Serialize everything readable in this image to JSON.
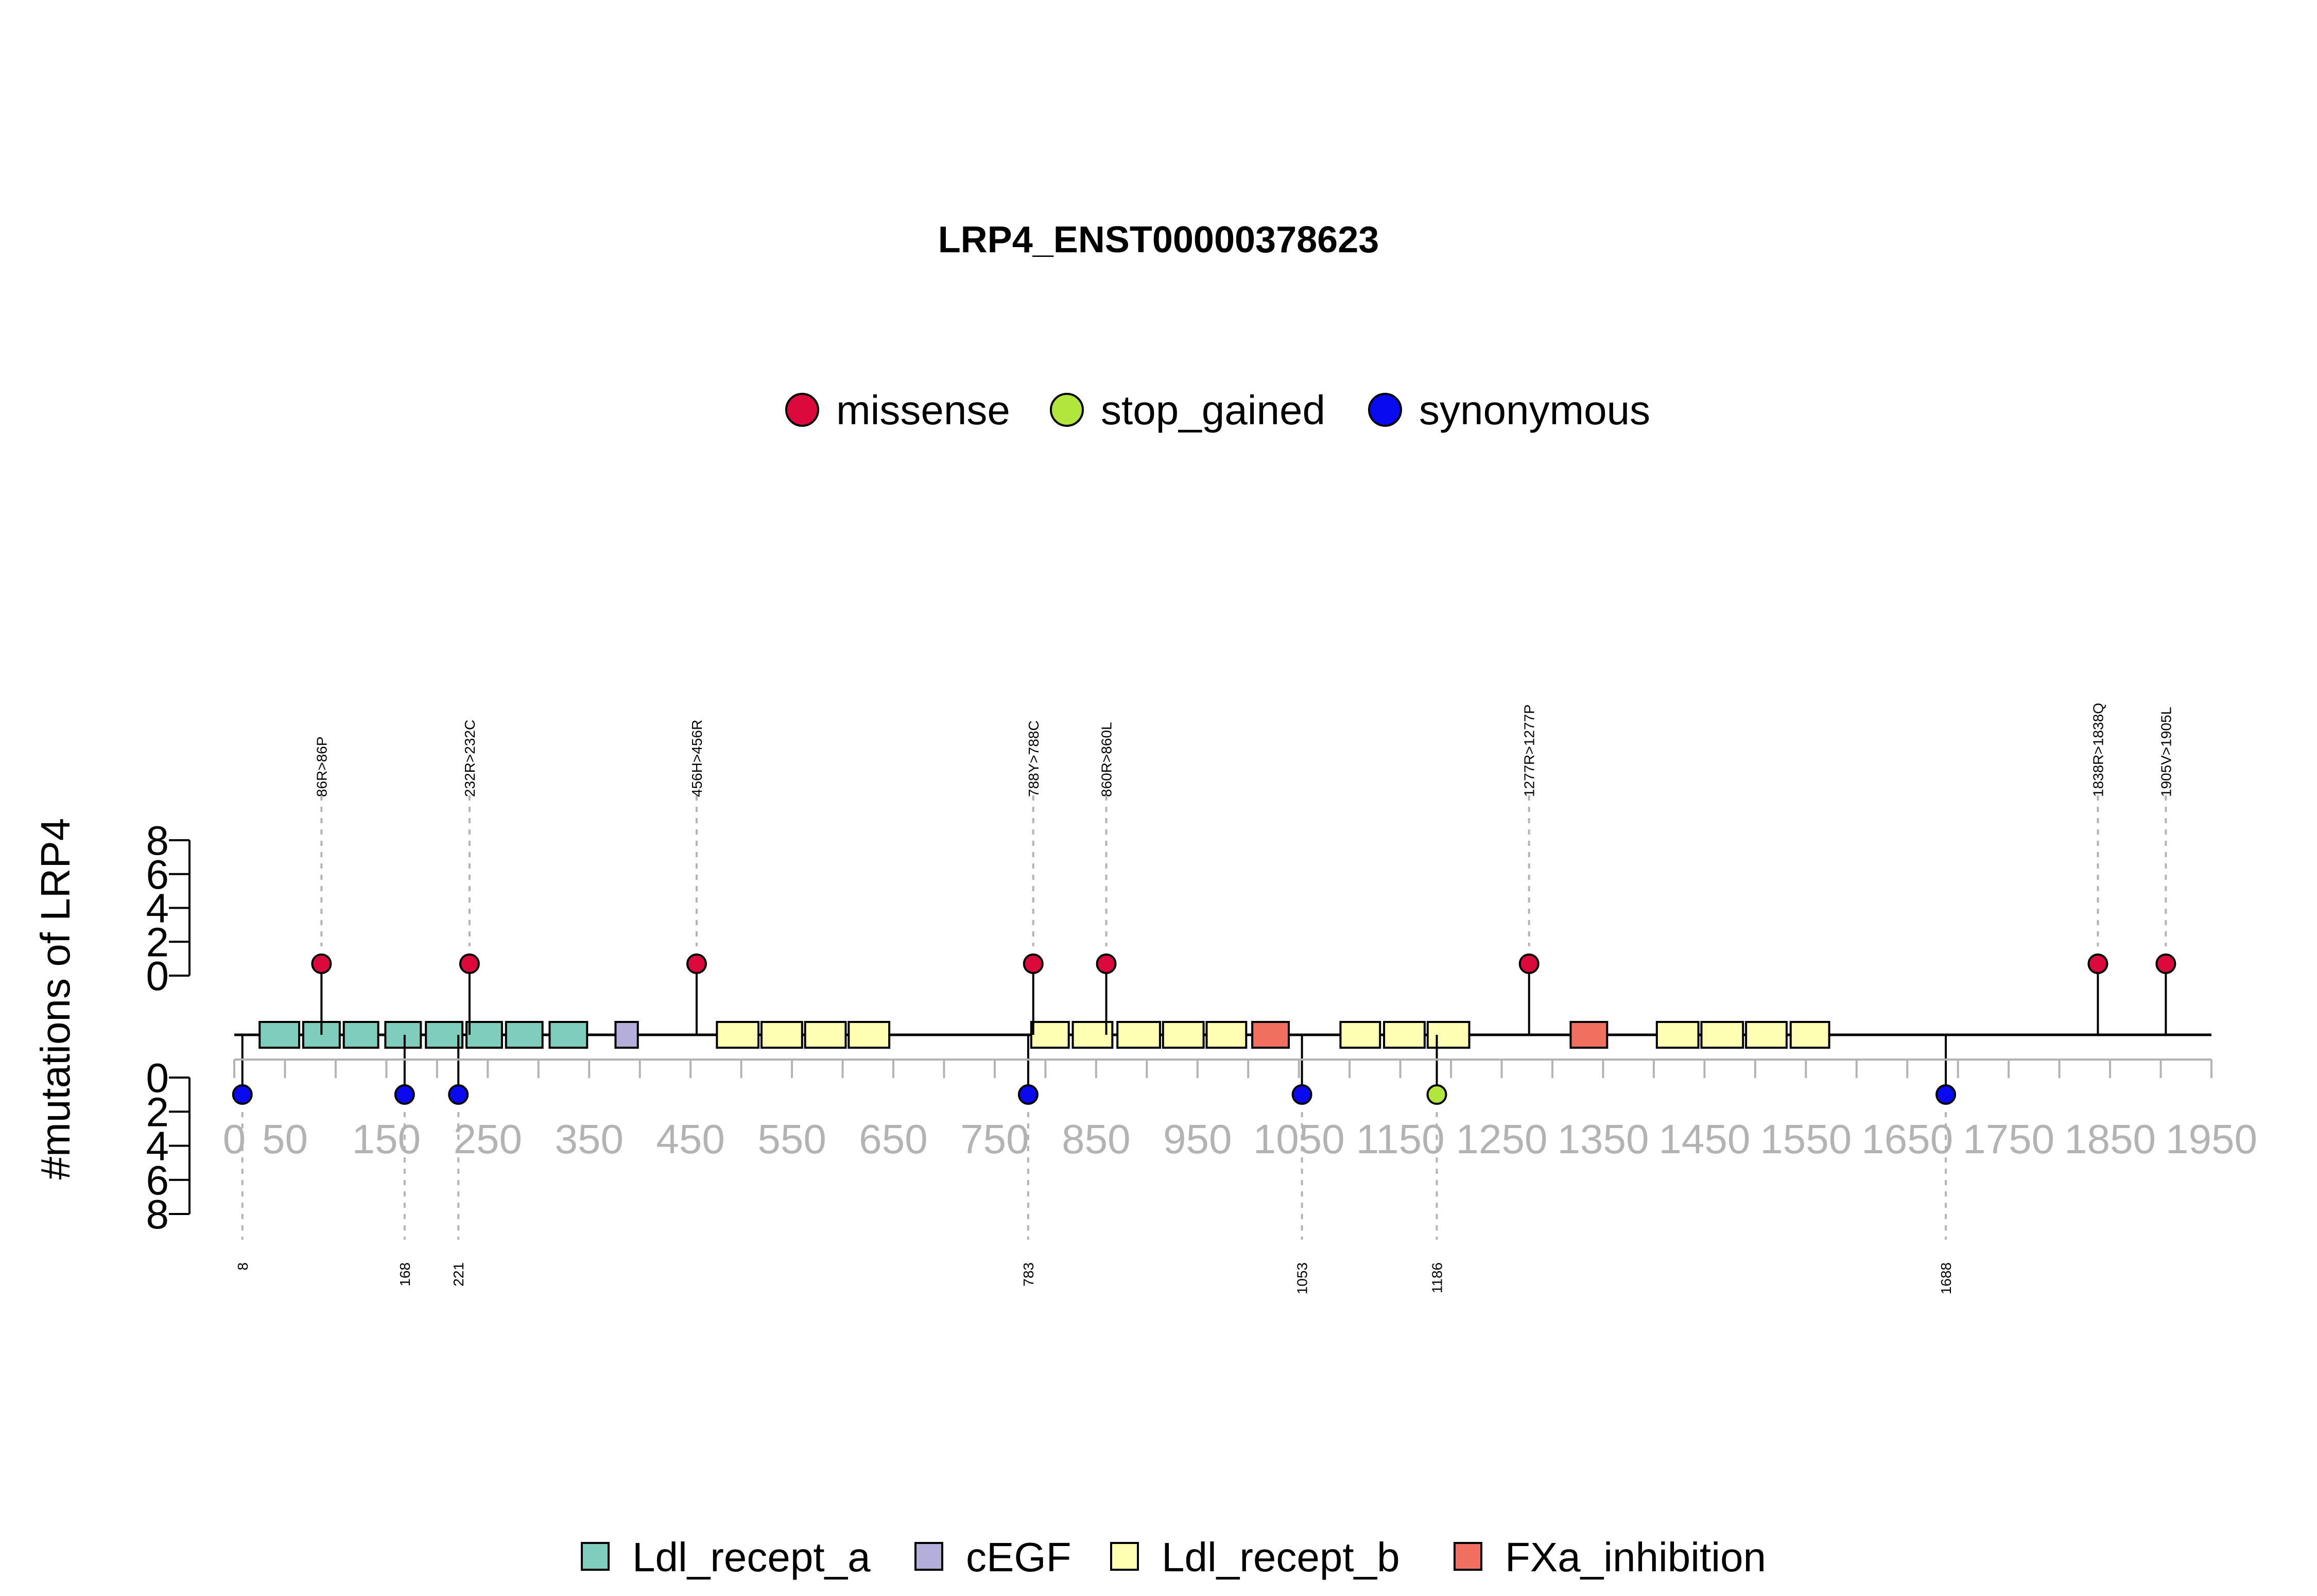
{
  "chart_data": {
    "type": "lollipop",
    "title": "LRP4_ENST00000378623",
    "ylabel": "#mutations of LRP4",
    "xlim": [
      0,
      1950
    ],
    "x_ticks": [
      0,
      50,
      150,
      250,
      350,
      450,
      550,
      650,
      750,
      850,
      950,
      1050,
      1150,
      1250,
      1350,
      1450,
      1550,
      1650,
      1750,
      1850,
      1950
    ],
    "y_ticks_upper": [
      "0",
      "2",
      "4",
      "6",
      "8"
    ],
    "y_ticks_lower": [
      "0",
      "2",
      "4",
      "6",
      "8"
    ],
    "mutation_types": [
      {
        "name": "missense",
        "color": "#DC0A3C"
      },
      {
        "name": "stop_gained",
        "color": "#B2E63C"
      },
      {
        "name": "synonymous",
        "color": "#0A0AF0"
      }
    ],
    "domain_types": [
      {
        "name": "Ldl_recept_a",
        "color": "#7FCDBB"
      },
      {
        "name": "cEGF",
        "color": "#B3AEDA"
      },
      {
        "name": "Ldl_recept_b",
        "color": "#FFFFB3"
      },
      {
        "name": "FXa_inhibition",
        "color": "#F16F5E"
      }
    ],
    "domains": [
      {
        "type": "Ldl_recept_a",
        "start": 25,
        "end": 64
      },
      {
        "type": "Ldl_recept_a",
        "start": 68,
        "end": 104
      },
      {
        "type": "Ldl_recept_a",
        "start": 108,
        "end": 142
      },
      {
        "type": "Ldl_recept_a",
        "start": 149,
        "end": 184
      },
      {
        "type": "Ldl_recept_a",
        "start": 189,
        "end": 225
      },
      {
        "type": "Ldl_recept_a",
        "start": 229,
        "end": 264
      },
      {
        "type": "Ldl_recept_a",
        "start": 268,
        "end": 304
      },
      {
        "type": "Ldl_recept_a",
        "start": 311,
        "end": 348
      },
      {
        "type": "cEGF",
        "start": 376,
        "end": 398
      },
      {
        "type": "Ldl_recept_b",
        "start": 476,
        "end": 517
      },
      {
        "type": "Ldl_recept_b",
        "start": 520,
        "end": 560
      },
      {
        "type": "Ldl_recept_b",
        "start": 563,
        "end": 603
      },
      {
        "type": "Ldl_recept_b",
        "start": 606,
        "end": 646
      },
      {
        "type": "Ldl_recept_b",
        "start": 786,
        "end": 823
      },
      {
        "type": "Ldl_recept_b",
        "start": 827,
        "end": 866
      },
      {
        "type": "Ldl_recept_b",
        "start": 871,
        "end": 913
      },
      {
        "type": "Ldl_recept_b",
        "start": 916,
        "end": 956
      },
      {
        "type": "Ldl_recept_b",
        "start": 959,
        "end": 998
      },
      {
        "type": "FXa_inhibition",
        "start": 1004,
        "end": 1040
      },
      {
        "type": "Ldl_recept_b",
        "start": 1091,
        "end": 1130
      },
      {
        "type": "Ldl_recept_b",
        "start": 1134,
        "end": 1174
      },
      {
        "type": "Ldl_recept_b",
        "start": 1177,
        "end": 1218
      },
      {
        "type": "FXa_inhibition",
        "start": 1318,
        "end": 1354
      },
      {
        "type": "Ldl_recept_b",
        "start": 1403,
        "end": 1444
      },
      {
        "type": "Ldl_recept_b",
        "start": 1447,
        "end": 1488
      },
      {
        "type": "Ldl_recept_b",
        "start": 1491,
        "end": 1531
      },
      {
        "type": "Ldl_recept_b",
        "start": 1535,
        "end": 1573
      }
    ],
    "mutations_upper": [
      {
        "pos": 86,
        "count": 1,
        "type": "missense",
        "label": "86R>86P"
      },
      {
        "pos": 232,
        "count": 1,
        "type": "missense",
        "label": "232R>232C"
      },
      {
        "pos": 456,
        "count": 1,
        "type": "missense",
        "label": "456H>456R"
      },
      {
        "pos": 788,
        "count": 1,
        "type": "missense",
        "label": "788Y>788C"
      },
      {
        "pos": 860,
        "count": 1,
        "type": "missense",
        "label": "860R>860L"
      },
      {
        "pos": 1277,
        "count": 1,
        "type": "missense",
        "label": "1277R>1277P"
      },
      {
        "pos": 1838,
        "count": 1,
        "type": "missense",
        "label": "1838R>1838Q"
      },
      {
        "pos": 1905,
        "count": 1,
        "type": "missense",
        "label": "1905V>1905L"
      }
    ],
    "mutations_lower": [
      {
        "pos": 8,
        "count": 1,
        "type": "synonymous",
        "label": "8"
      },
      {
        "pos": 168,
        "count": 1,
        "type": "synonymous",
        "label": "168"
      },
      {
        "pos": 221,
        "count": 1,
        "type": "synonymous",
        "label": "221"
      },
      {
        "pos": 783,
        "count": 1,
        "type": "synonymous",
        "label": "783"
      },
      {
        "pos": 1053,
        "count": 1,
        "type": "synonymous",
        "label": "1053"
      },
      {
        "pos": 1186,
        "count": 1,
        "type": "stop_gained",
        "label": "1186"
      },
      {
        "pos": 1688,
        "count": 1,
        "type": "synonymous",
        "label": "1688"
      }
    ]
  }
}
